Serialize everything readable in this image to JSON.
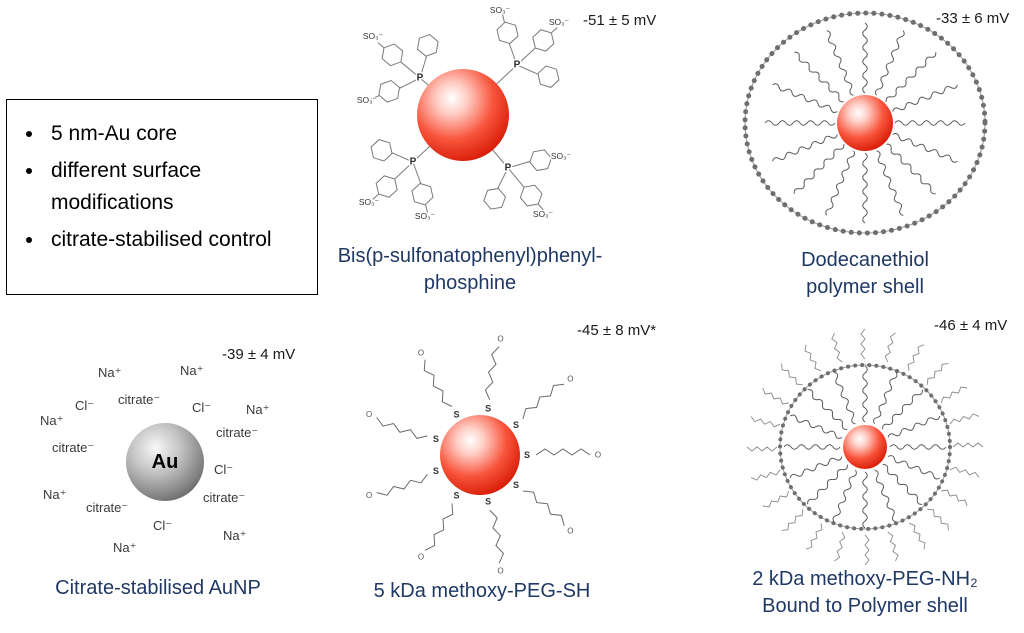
{
  "info_box": {
    "items": [
      "5 nm-Au core",
      "different surface modifications",
      "citrate-stabilised control"
    ]
  },
  "panels": {
    "bspp": {
      "zeta": "-51 ± 5 mV",
      "caption_line1": "Bis(p-sulfonatophenyl)phenyl-",
      "caption_line2": "phosphine"
    },
    "dodecanethiol": {
      "zeta": "-33 ± 6 mV",
      "caption_line1": "Dodecanethiol",
      "caption_line2": "polymer shell"
    },
    "citrate": {
      "zeta": "-39 ± 4 mV",
      "caption_line1": "Citrate-stabilised AuNP",
      "core_label": "Au",
      "ions": [
        "Na⁺",
        "Na⁺",
        "Cl⁻",
        "citrate⁻",
        "Cl⁻",
        "Na⁺",
        "Na⁺",
        "citrate⁻",
        "citrate⁻",
        "Cl⁻",
        "Na⁺",
        "citrate⁻",
        "citrate⁻",
        "Cl⁻",
        "Na⁺",
        "Na⁺"
      ]
    },
    "peg_sh": {
      "zeta": "-45 ± 8 mV*",
      "caption_line1": "5 kDa methoxy-PEG-SH"
    },
    "peg_nh2": {
      "zeta": "-46 ± 4 mV",
      "caption_line1": "2 kDa methoxy-PEG-NH₂",
      "caption_line2": "Bound to Polymer shell"
    }
  },
  "atoms": {
    "phosphorus": "P",
    "sulfur": "S",
    "oxygen": "O",
    "sulfonate": "SO₃⁻"
  },
  "colors": {
    "caption_text": "#1f3864",
    "core_red": "#e81500",
    "gold_core_gray": "#7f7f7f",
    "structure_stroke": "#777777",
    "ion_text": "#3a3a3a"
  }
}
